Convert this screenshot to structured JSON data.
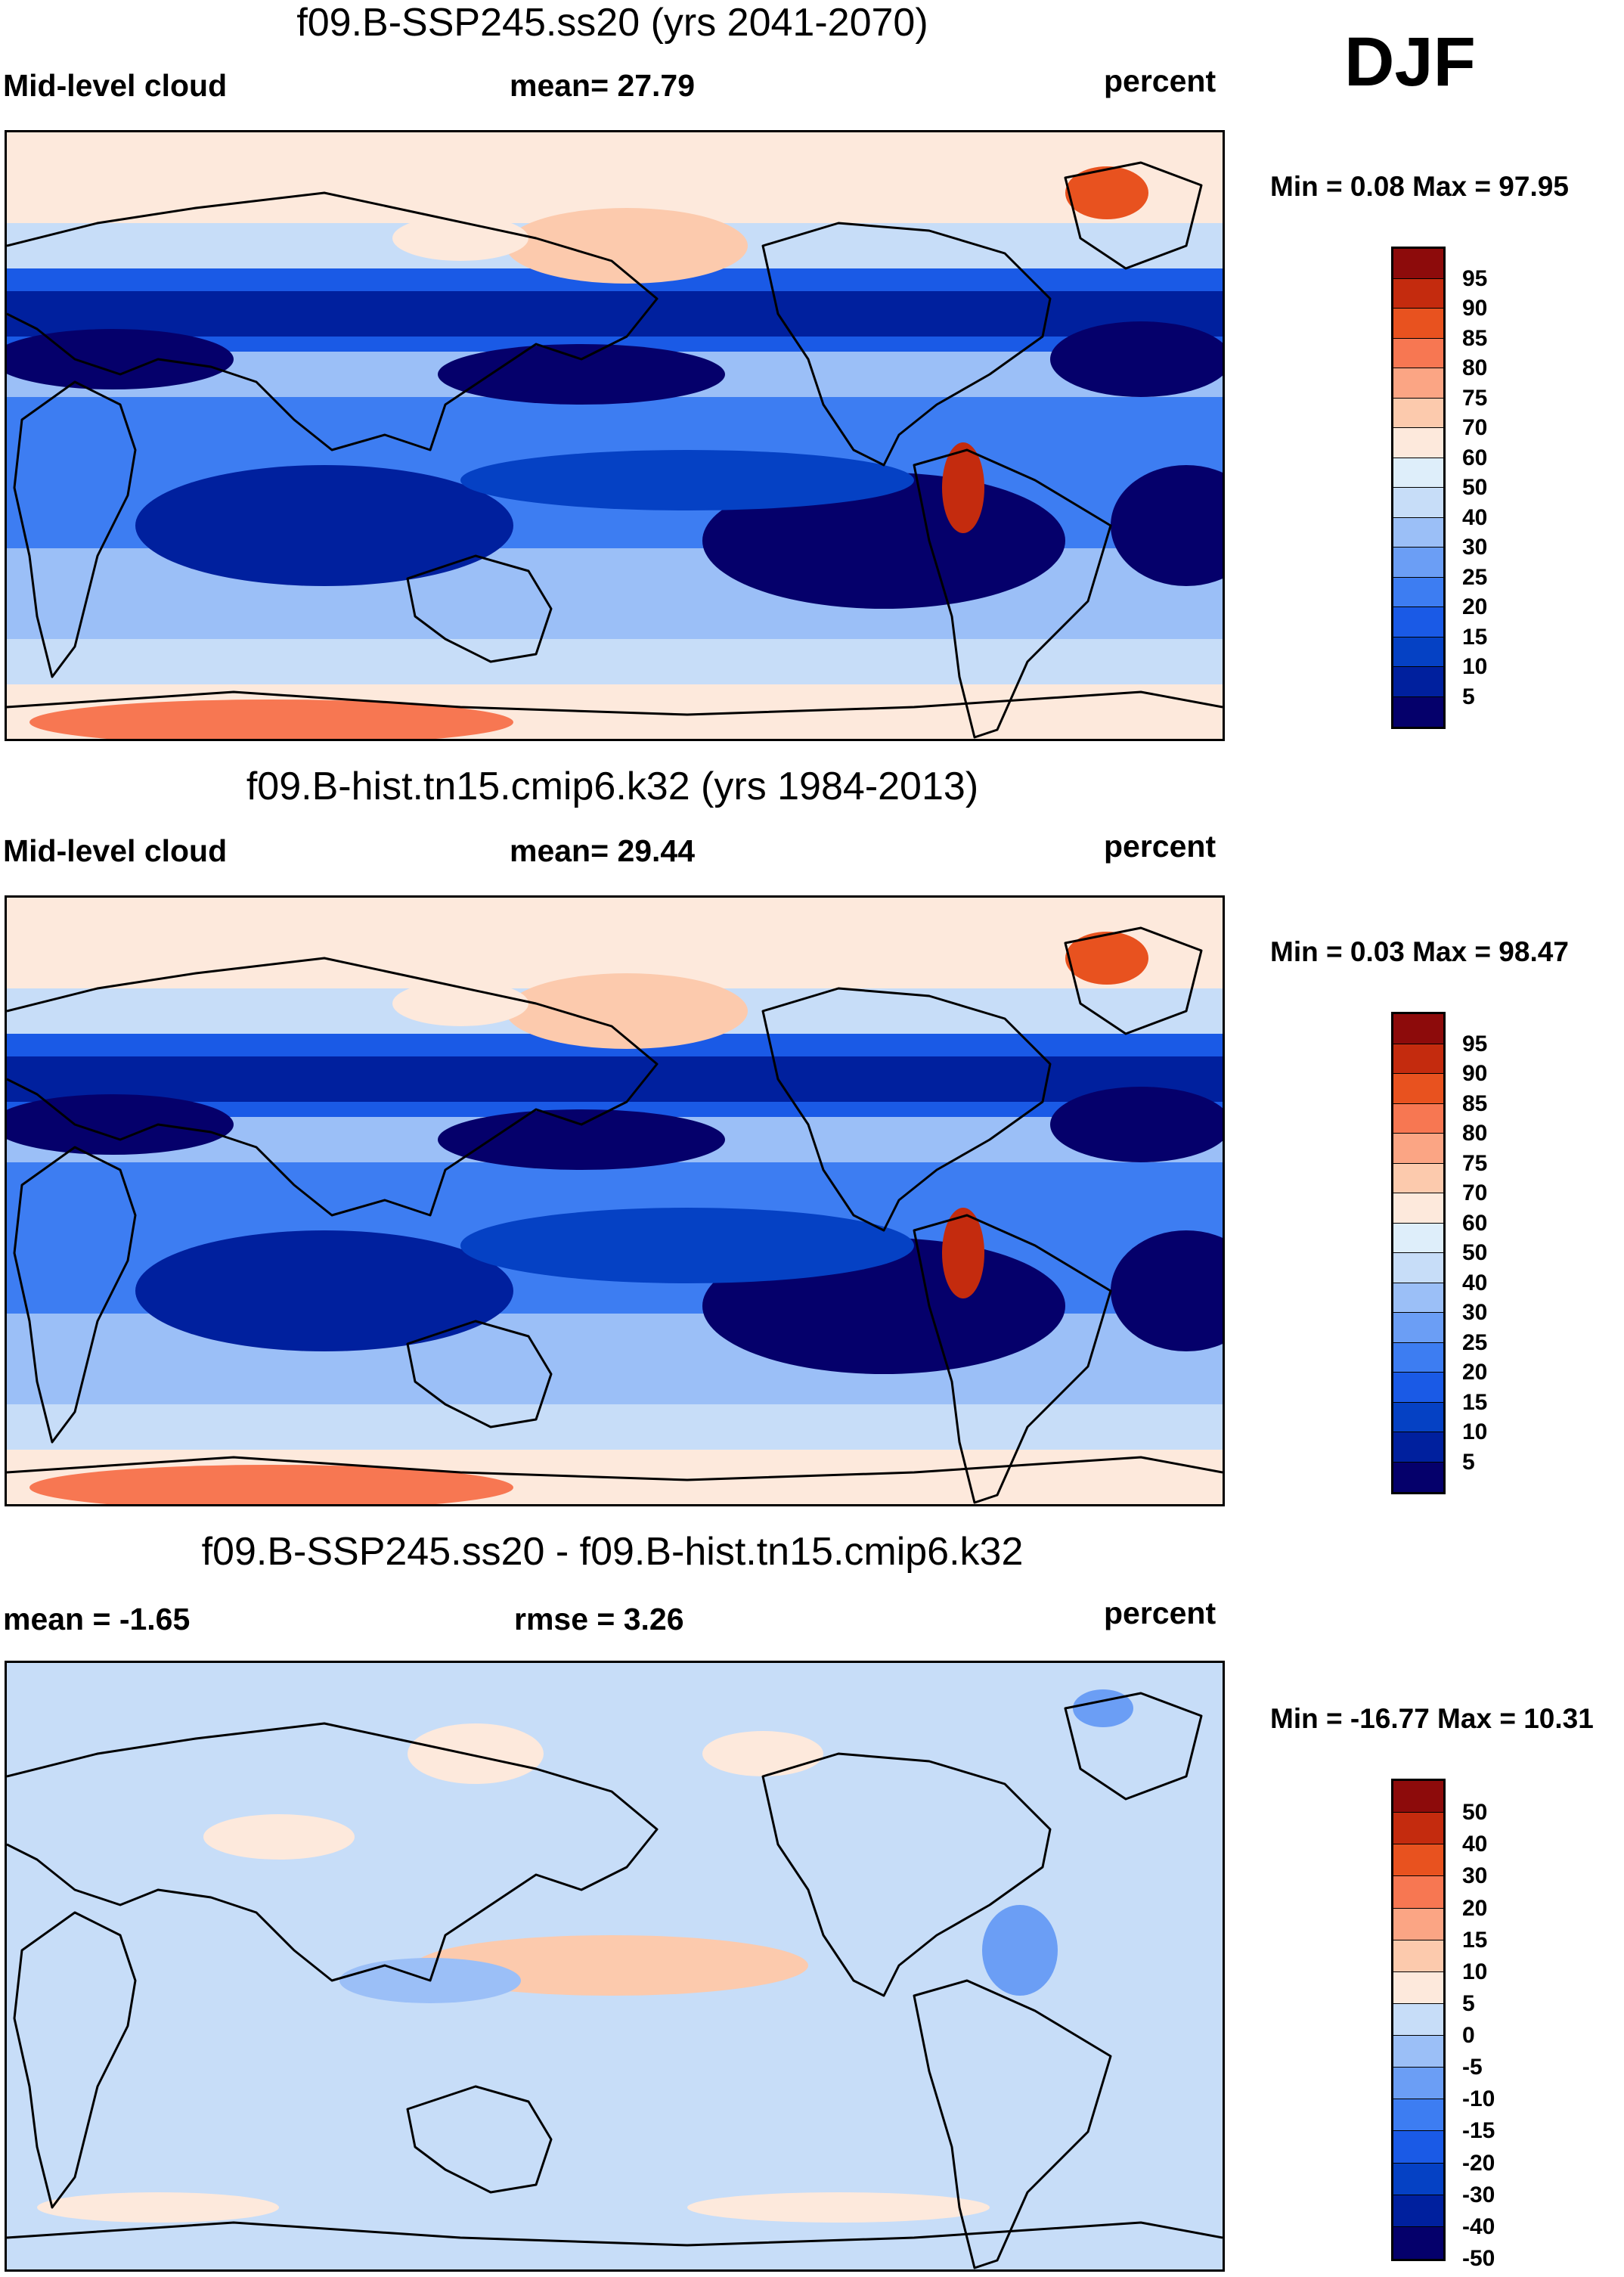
{
  "season": "DJF",
  "palette": {
    "levels_abs": [
      "#05006b",
      "#00209e",
      "#0541c4",
      "#1a5ae6",
      "#3d7df2",
      "#6b9ef5",
      "#9bbff7",
      "#c7ddf8",
      "#deeefa",
      "#fde9dc",
      "#fccaad",
      "#fba584",
      "#f77752",
      "#e8521f",
      "#c42b0e",
      "#8d0b0b"
    ],
    "levels_diff": [
      "#05006b",
      "#00209e",
      "#0541c4",
      "#1a5ae6",
      "#3d7df2",
      "#6b9ef5",
      "#9bbff7",
      "#c7ddf8",
      "#fde9dc",
      "#fccaad",
      "#fba584",
      "#f77752",
      "#e8521f",
      "#c42b0e",
      "#8d0b0b"
    ]
  },
  "panels": [
    {
      "title": "f09.B-SSP245.ss20 (yrs 2041-2070)",
      "left_label": "Mid-level cloud",
      "center_label": "mean=  27.79",
      "right_label": "percent",
      "minmax": "Min =   0.08 Max =  97.95",
      "colorbar_ticks": [
        "95",
        "90",
        "85",
        "80",
        "75",
        "70",
        "60",
        "50",
        "40",
        "30",
        "25",
        "20",
        "15",
        "10",
        "5"
      ],
      "kind": "abs"
    },
    {
      "title": "f09.B-hist.tn15.cmip6.k32 (yrs 1984-2013)",
      "left_label": "Mid-level cloud",
      "center_label": "mean=  29.44",
      "right_label": "percent",
      "minmax": "Min =   0.03 Max =  98.47",
      "colorbar_ticks": [
        "95",
        "90",
        "85",
        "80",
        "75",
        "70",
        "60",
        "50",
        "40",
        "30",
        "25",
        "20",
        "15",
        "10",
        "5"
      ],
      "kind": "abs"
    },
    {
      "title": "f09.B-SSP245.ss20 - f09.B-hist.tn15.cmip6.k32",
      "left_label": "mean =  -1.65",
      "center_label": "rmse =   3.26",
      "right_label": "percent",
      "minmax": "Min = -16.77 Max =  10.31",
      "colorbar_ticks": [
        "50",
        "40",
        "30",
        "20",
        "15",
        "10",
        "5",
        "0",
        "-5",
        "-10",
        "-15",
        "-20",
        "-30",
        "-40",
        "-50"
      ],
      "kind": "diff"
    }
  ]
}
